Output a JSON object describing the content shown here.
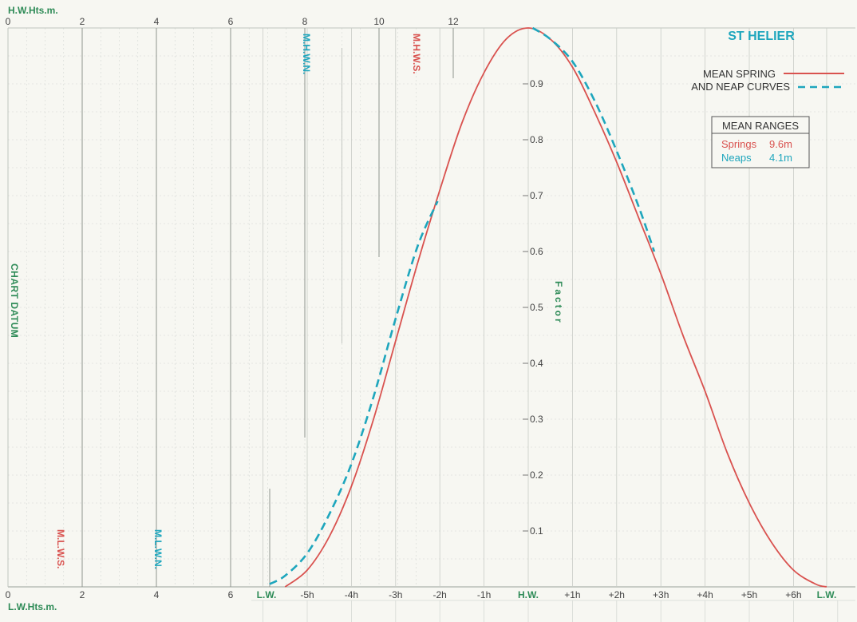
{
  "chart_data": {
    "type": "line",
    "title": "ST HELIER",
    "legend": {
      "position": "top-right",
      "spring_line1": "MEAN SPRING",
      "spring_line2": "AND NEAP CURVES"
    },
    "ranges_box": {
      "header": "MEAN RANGES",
      "springs_label": "Springs",
      "springs_value": "9.6m",
      "neaps_label": "Neaps",
      "neaps_value": "4.1m"
    },
    "height_axis": {
      "top_title": "H.W.Hts.m.",
      "bottom_title": "L.W.Hts.m.",
      "top_ticks": [
        "0",
        "2",
        "4",
        "6",
        "8",
        "10",
        "12"
      ],
      "bottom_ticks": [
        "0",
        "2",
        "4",
        "6"
      ],
      "side_label": "CHART DATUM"
    },
    "level_labels": {
      "mhwn": "M.H.W.N.",
      "mhws": "M.H.W.S.",
      "mlws": "M.L.W.S.",
      "mlwn": "M.L.W.N."
    },
    "factor_axis": {
      "label": "Factor",
      "ticks": [
        "0.1",
        "0.2",
        "0.3",
        "0.4",
        "0.5",
        "0.6",
        "0.7",
        "0.8",
        "0.9"
      ],
      "ylim": [
        0,
        1
      ]
    },
    "time_axis": {
      "hours": [
        -6,
        -5,
        -4,
        -3,
        -2,
        -1,
        0,
        1,
        2,
        3,
        4,
        5,
        6,
        6.75
      ],
      "labels": [
        "L.W.",
        "-5h",
        "-4h",
        "-3h",
        "-2h",
        "-1h",
        "H.W.",
        "+1h",
        "+2h",
        "+3h",
        "+4h",
        "+5h",
        "+6h",
        "L.W."
      ]
    },
    "series": [
      {
        "name": "MEAN SPRING",
        "color": "#d9524f",
        "style": "solid",
        "x": [
          -5.5,
          -5.0,
          -4.5,
          -4.0,
          -3.5,
          -3.0,
          -2.5,
          -2.0,
          -1.5,
          -1.0,
          -0.5,
          0,
          0.5,
          1.0,
          1.5,
          2.0,
          2.5,
          3.0,
          3.5,
          4.0,
          4.5,
          5.0,
          5.5,
          6.0,
          6.5,
          6.75
        ],
        "y": [
          0.0,
          0.03,
          0.09,
          0.18,
          0.3,
          0.44,
          0.58,
          0.71,
          0.83,
          0.92,
          0.98,
          1.0,
          0.98,
          0.93,
          0.85,
          0.76,
          0.66,
          0.56,
          0.45,
          0.35,
          0.24,
          0.15,
          0.08,
          0.03,
          0.005,
          0.0
        ]
      },
      {
        "name": "NEAP",
        "color": "#1ea6bd",
        "style": "dashed",
        "x": [
          -5.85,
          -5.5,
          -5.0,
          -4.5,
          -4.0,
          -3.5,
          -3.0,
          -2.5,
          -2.05,
          0.1,
          0.5,
          1.0,
          1.5,
          2.0,
          2.5,
          2.85
        ],
        "y": [
          0.005,
          0.02,
          0.06,
          0.13,
          0.22,
          0.34,
          0.48,
          0.61,
          0.69,
          1.0,
          0.98,
          0.94,
          0.87,
          0.78,
          0.68,
          0.6
        ]
      }
    ]
  }
}
